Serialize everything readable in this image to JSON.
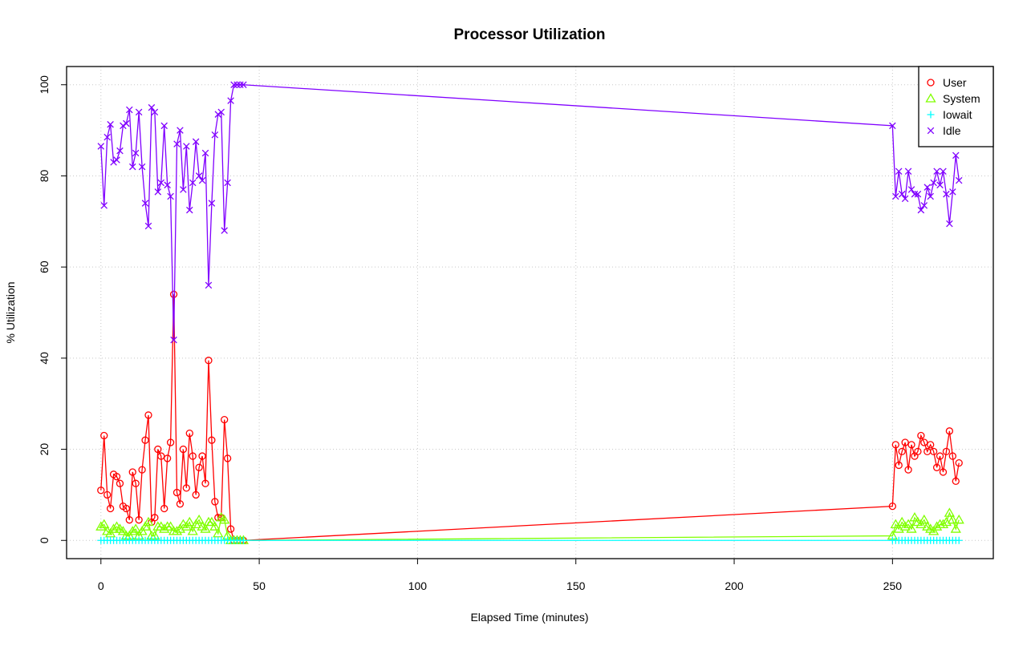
{
  "chart_data": {
    "type": "line",
    "title": "Processor Utilization",
    "x_label": "Elapsed Time (minutes)",
    "y_label": "% Utilization",
    "x": [
      0,
      1,
      2,
      3,
      4,
      5,
      6,
      7,
      8,
      9,
      10,
      11,
      12,
      13,
      14,
      15,
      16,
      17,
      18,
      19,
      20,
      21,
      22,
      23,
      24,
      25,
      26,
      27,
      28,
      29,
      30,
      31,
      32,
      33,
      34,
      35,
      36,
      37,
      38,
      39,
      40,
      41,
      42,
      43,
      44,
      45,
      250,
      251,
      252,
      253,
      254,
      255,
      256,
      257,
      258,
      259,
      260,
      261,
      262,
      263,
      264,
      265,
      266,
      267,
      268,
      269,
      270,
      271
    ],
    "series": [
      {
        "name": "User",
        "color": "#ff0000",
        "marker": "circle",
        "values": [
          11,
          23,
          10,
          7,
          14.5,
          14,
          12.5,
          7.5,
          7,
          4.5,
          15,
          12.5,
          4.5,
          15.5,
          22,
          27.5,
          4,
          5,
          20,
          18.5,
          7,
          18,
          21.5,
          54,
          10.5,
          8,
          20,
          11.5,
          23.5,
          18.5,
          10,
          16,
          18.5,
          12.5,
          39.5,
          22,
          8.5,
          5,
          5,
          26.5,
          18,
          2.5,
          0,
          0,
          0,
          0,
          7.5,
          21,
          16.5,
          19.5,
          21.5,
          15.5,
          21,
          18.5,
          19.5,
          23,
          21.5,
          19.5,
          21,
          19.5,
          16,
          18.5,
          15,
          19.5,
          24,
          18.5,
          13,
          17
        ]
      },
      {
        "name": "System",
        "color": "#80ff00",
        "marker": "triangle",
        "values": [
          3,
          3.5,
          2,
          1.5,
          2.5,
          3,
          2.5,
          2,
          1,
          1,
          2,
          2.5,
          1,
          2,
          3,
          4,
          1,
          1,
          3,
          3,
          2.5,
          3,
          3,
          2,
          2,
          2.5,
          3.5,
          3,
          4,
          2,
          3.5,
          4.5,
          3,
          2.5,
          4,
          4,
          3,
          1.5,
          5,
          4.5,
          1,
          0,
          0,
          0,
          0,
          0,
          1,
          3.5,
          2.5,
          4,
          3,
          3.5,
          2.5,
          5,
          4,
          3.5,
          4.5,
          3,
          2.5,
          2,
          3,
          3.5,
          3.5,
          4,
          6,
          4.5,
          2.5,
          4.5
        ]
      },
      {
        "name": "Iowait",
        "color": "#00ffff",
        "marker": "plus",
        "values": [
          0,
          0,
          0,
          0,
          0,
          0,
          0,
          0,
          0,
          0,
          0,
          0,
          0,
          0,
          0,
          0,
          0,
          0,
          0,
          0,
          0,
          0,
          0,
          0,
          0,
          0,
          0,
          0,
          0,
          0,
          0,
          0,
          0,
          0,
          0,
          0,
          0,
          0,
          0,
          0,
          0,
          0,
          0,
          0,
          0,
          0,
          0,
          0,
          0,
          0,
          0,
          0,
          0,
          0,
          0,
          0,
          0,
          0,
          0,
          0,
          0,
          0,
          0,
          0,
          0,
          0,
          0,
          0
        ]
      },
      {
        "name": "Idle",
        "color": "#8000ff",
        "marker": "cross",
        "values": [
          86.5,
          73.5,
          88.5,
          91.3,
          83,
          83.5,
          85.5,
          91,
          91.5,
          94.5,
          82,
          85,
          94,
          82,
          74,
          69,
          95,
          94,
          76.5,
          78.5,
          91,
          78,
          75.5,
          44,
          87,
          90,
          77,
          86.5,
          72.5,
          78.5,
          87.5,
          80,
          79,
          85,
          56,
          74,
          89,
          93.5,
          94,
          68,
          78.5,
          96.5,
          100,
          100,
          100,
          100,
          91,
          75.5,
          81,
          76,
          75,
          81,
          77,
          76,
          76,
          72.5,
          73.5,
          77.5,
          75.5,
          78.5,
          81,
          78,
          81,
          76,
          69.5,
          76.5,
          84.5,
          79
        ]
      }
    ],
    "xlim": [
      -10.84,
      281.84
    ],
    "ylim": [
      -4,
      104
    ],
    "xticks": [
      0,
      50,
      100,
      150,
      200,
      250
    ],
    "yticks": [
      0,
      20,
      40,
      60,
      80,
      100
    ],
    "grid": true,
    "legend": "top-right"
  }
}
